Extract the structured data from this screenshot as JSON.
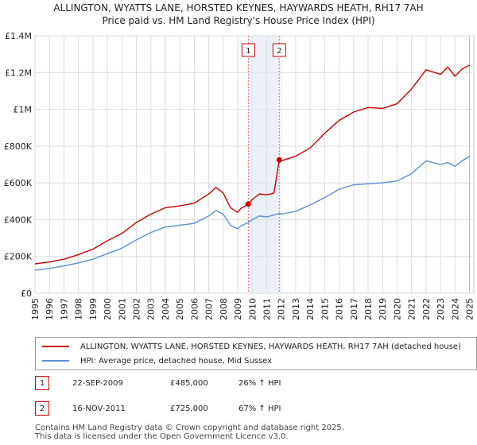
{
  "chart_data": {
    "type": "line",
    "title": "ALLINGTON, WYATTS LANE, HORSTED KEYNES, HAYWARDS HEATH, RH17 7AH",
    "subtitle": "Price paid vs. HM Land Registry's House Price Index (HPI)",
    "xlabel": "",
    "ylabel": "",
    "xlim": [
      1995,
      2025.3
    ],
    "ylim": [
      0,
      1400000
    ],
    "x_ticks": [
      "1995",
      "1996",
      "1997",
      "1998",
      "1999",
      "2000",
      "2001",
      "2002",
      "2003",
      "2004",
      "2005",
      "2006",
      "2007",
      "2008",
      "2009",
      "2010",
      "2011",
      "2012",
      "2013",
      "2014",
      "2015",
      "2016",
      "2017",
      "2018",
      "2019",
      "2020",
      "2021",
      "2022",
      "2023",
      "2024",
      "2025"
    ],
    "y_ticks": [
      {
        "value": 0,
        "label": "£0"
      },
      {
        "value": 200000,
        "label": "£200K"
      },
      {
        "value": 400000,
        "label": "£400K"
      },
      {
        "value": 600000,
        "label": "£600K"
      },
      {
        "value": 800000,
        "label": "£800K"
      },
      {
        "value": 1000000,
        "label": "£1M"
      },
      {
        "value": 1200000,
        "label": "£1.2M"
      },
      {
        "value": 1400000,
        "label": "£1.4M"
      }
    ],
    "grid": true,
    "series": [
      {
        "name": "ALLINGTON, WYATTS LANE, HORSTED KEYNES, HAYWARDS HEATH, RH17 7AH (detached house)",
        "color": "#cc0000",
        "x": [
          1995,
          1996,
          1997,
          1998,
          1999,
          2000,
          2001,
          2002,
          2003,
          2004,
          2005,
          2006,
          2007,
          2007.5,
          2008,
          2008.5,
          2009,
          2009.2,
          2009.73,
          2010,
          2010.5,
          2011,
          2011.5,
          2011.87,
          2012,
          2013,
          2014,
          2015,
          2016,
          2017,
          2018,
          2019,
          2020,
          2021,
          2022,
          2023,
          2023.5,
          2024,
          2024.5,
          2025
        ],
        "values": [
          160000,
          170000,
          185000,
          210000,
          240000,
          285000,
          325000,
          385000,
          430000,
          465000,
          475000,
          490000,
          540000,
          575000,
          545000,
          465000,
          440000,
          460000,
          485000,
          510000,
          540000,
          535000,
          545000,
          725000,
          720000,
          745000,
          790000,
          870000,
          940000,
          985000,
          1010000,
          1005000,
          1030000,
          1110000,
          1215000,
          1190000,
          1230000,
          1180000,
          1220000,
          1240000
        ]
      },
      {
        "name": "HPI: Average price, detached house, Mid Sussex",
        "color": "#5b8ed1",
        "x": [
          1995,
          1996,
          1997,
          1998,
          1999,
          2000,
          2001,
          2002,
          2003,
          2004,
          2005,
          2006,
          2007,
          2007.5,
          2008,
          2008.5,
          2009,
          2009.2,
          2009.73,
          2010,
          2010.5,
          2011,
          2011.5,
          2011.87,
          2012,
          2013,
          2014,
          2015,
          2016,
          2017,
          2018,
          2019,
          2020,
          2021,
          2022,
          2023,
          2023.5,
          2024,
          2024.5,
          2025
        ],
        "values": [
          125000,
          135000,
          148000,
          165000,
          185000,
          215000,
          245000,
          290000,
          330000,
          360000,
          370000,
          380000,
          420000,
          450000,
          430000,
          370000,
          350000,
          365000,
          385000,
          400000,
          420000,
          415000,
          425000,
          435000,
          430000,
          445000,
          480000,
          520000,
          565000,
          590000,
          595000,
          600000,
          610000,
          650000,
          720000,
          700000,
          710000,
          690000,
          720000,
          745000
        ]
      }
    ],
    "markers": [
      {
        "label": "1",
        "x": 2009.73,
        "value": 485000
      },
      {
        "label": "2",
        "x": 2011.87,
        "value": 725000
      }
    ]
  },
  "legend": {
    "property": "ALLINGTON, WYATTS LANE, HORSTED KEYNES, HAYWARDS HEATH, RH17 7AH (detached house)",
    "hpi": "HPI: Average price, detached house, Mid Sussex"
  },
  "transactions": [
    {
      "label": "1",
      "date": "22-SEP-2009",
      "price": "£485,000",
      "hpi": "26% ↑ HPI"
    },
    {
      "label": "2",
      "date": "16-NOV-2011",
      "price": "£725,000",
      "hpi": "67% ↑ HPI"
    }
  ],
  "footer": {
    "line1": "Contains HM Land Registry data © Crown copyright and database right 2025.",
    "line2": "This data is licensed under the Open Government Licence v3.0."
  }
}
